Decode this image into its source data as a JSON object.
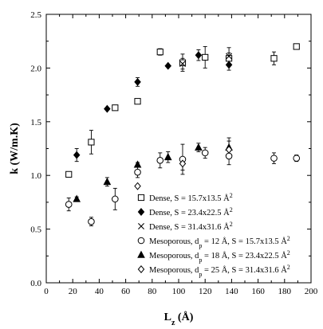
{
  "chart_data": {
    "type": "scatter",
    "title": "",
    "xlabel": "Lz (Å)",
    "ylabel": "k (W/m.K)",
    "xlim": [
      0,
      200
    ],
    "ylim": [
      0.0,
      2.5
    ],
    "xticks": [
      0,
      20,
      40,
      60,
      80,
      100,
      120,
      140,
      160,
      180,
      200
    ],
    "yticks": [
      "0.0",
      "0.5",
      "1.0",
      "1.5",
      "2.0",
      "2.5"
    ],
    "grid": false,
    "legend_position": "lower-right",
    "series": [
      {
        "name": "Dense, S = 15.7x13.5 Å²",
        "marker": "open-square",
        "points": [
          {
            "x": 17,
            "y": 1.01,
            "err": 0.02
          },
          {
            "x": 34,
            "y": 1.31,
            "err": 0.11
          },
          {
            "x": 52,
            "y": 1.63,
            "err": 0.02
          },
          {
            "x": 69,
            "y": 1.69,
            "err": 0.02
          },
          {
            "x": 86,
            "y": 2.15,
            "err": 0.03
          },
          {
            "x": 103,
            "y": 2.05,
            "err": 0.08
          },
          {
            "x": 120,
            "y": 2.1,
            "err": 0.1
          },
          {
            "x": 138,
            "y": 2.09,
            "err": 0.05
          },
          {
            "x": 172,
            "y": 2.09,
            "err": 0.06
          },
          {
            "x": 189,
            "y": 2.2,
            "err": 0.02
          }
        ]
      },
      {
        "name": "Dense, S = 23.4x22.5 Å²",
        "marker": "filled-diamond",
        "points": [
          {
            "x": 23,
            "y": 1.19,
            "err": 0.06
          },
          {
            "x": 46,
            "y": 1.62,
            "err": 0.0
          },
          {
            "x": 69,
            "y": 1.87,
            "err": 0.04
          },
          {
            "x": 92,
            "y": 2.02,
            "err": 0.0
          },
          {
            "x": 115,
            "y": 2.12,
            "err": 0.05
          },
          {
            "x": 138,
            "y": 2.03,
            "err": 0.05
          }
        ]
      },
      {
        "name": "Dense, S = 31.4x31.6 Å²",
        "marker": "x",
        "points": [
          {
            "x": 103,
            "y": 2.04,
            "err": 0.05
          },
          {
            "x": 138,
            "y": 2.11,
            "err": 0.08
          }
        ]
      },
      {
        "name": "Mesoporous, dp = 12 Å, S = 15.7x13.5 Å²",
        "marker": "open-circle",
        "points": [
          {
            "x": 17,
            "y": 0.73,
            "err": 0.06
          },
          {
            "x": 34,
            "y": 0.57,
            "err": 0.04
          },
          {
            "x": 52,
            "y": 0.78,
            "err": 0.1
          },
          {
            "x": 69,
            "y": 1.03,
            "err": 0.05
          },
          {
            "x": 86,
            "y": 1.14,
            "err": 0.07
          },
          {
            "x": 103,
            "y": 1.15,
            "err": 0.14
          },
          {
            "x": 120,
            "y": 1.21,
            "err": 0.05
          },
          {
            "x": 138,
            "y": 1.18,
            "err": 0.08
          },
          {
            "x": 172,
            "y": 1.16,
            "err": 0.05
          },
          {
            "x": 189,
            "y": 1.16,
            "err": 0.03
          }
        ]
      },
      {
        "name": "Mesoporous, dp = 18 Å, S = 23.4x22.5 Å²",
        "marker": "filled-triangle",
        "points": [
          {
            "x": 23,
            "y": 0.78,
            "err": 0.02
          },
          {
            "x": 46,
            "y": 0.94,
            "err": 0.04
          },
          {
            "x": 69,
            "y": 1.1,
            "err": 0.02
          },
          {
            "x": 92,
            "y": 1.17,
            "err": 0.05
          },
          {
            "x": 115,
            "y": 1.26,
            "err": 0.04
          },
          {
            "x": 138,
            "y": 1.26,
            "err": 0.09
          }
        ]
      },
      {
        "name": "Mesoporous, dp = 25 Å, S = 31.4x31.6 Å²",
        "marker": "open-diamond",
        "points": [
          {
            "x": 69,
            "y": 0.9,
            "err": 0.0
          },
          {
            "x": 103,
            "y": 1.11,
            "err": 0.06
          },
          {
            "x": 138,
            "y": 1.24,
            "err": 0.08
          }
        ]
      }
    ]
  }
}
